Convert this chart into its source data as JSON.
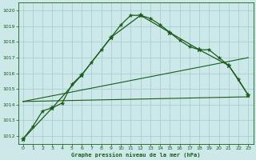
{
  "title": "Graphe pression niveau de la mer (hPa)",
  "background_color": "#cce8e8",
  "grid_color": "#aacece",
  "line_color": "#1a5c1a",
  "xlim": [
    -0.5,
    23.5
  ],
  "ylim": [
    1011.5,
    1020.5
  ],
  "yticks": [
    1012,
    1013,
    1014,
    1015,
    1016,
    1017,
    1018,
    1019,
    1020
  ],
  "xticks": [
    0,
    1,
    2,
    3,
    4,
    5,
    6,
    7,
    8,
    9,
    10,
    11,
    12,
    13,
    14,
    15,
    16,
    17,
    18,
    19,
    20,
    21,
    22,
    23
  ],
  "series_main": {
    "x": [
      0,
      1,
      2,
      3,
      4,
      5,
      6,
      7,
      8,
      9,
      10,
      11,
      12,
      13,
      14,
      15,
      16,
      17,
      18,
      19,
      20,
      21,
      22,
      23
    ],
    "y": [
      1011.8,
      1012.6,
      1013.6,
      1013.8,
      1014.1,
      1015.3,
      1015.9,
      1016.7,
      1017.5,
      1018.3,
      1019.1,
      1019.7,
      1019.7,
      1019.5,
      1019.1,
      1018.6,
      1018.1,
      1017.7,
      1017.5,
      1017.5,
      1017.0,
      1016.5,
      1015.6,
      1014.6
    ]
  },
  "series_sparse": {
    "x": [
      0,
      3,
      6,
      9,
      12,
      15,
      18,
      21,
      23
    ],
    "y": [
      1011.8,
      1013.8,
      1015.9,
      1018.3,
      1019.7,
      1018.6,
      1017.5,
      1016.5,
      1014.6
    ]
  },
  "series_flat": {
    "x": [
      0,
      23
    ],
    "y": [
      1014.2,
      1014.5
    ]
  },
  "series_rising": {
    "x": [
      0,
      23
    ],
    "y": [
      1014.2,
      1017.0
    ]
  }
}
